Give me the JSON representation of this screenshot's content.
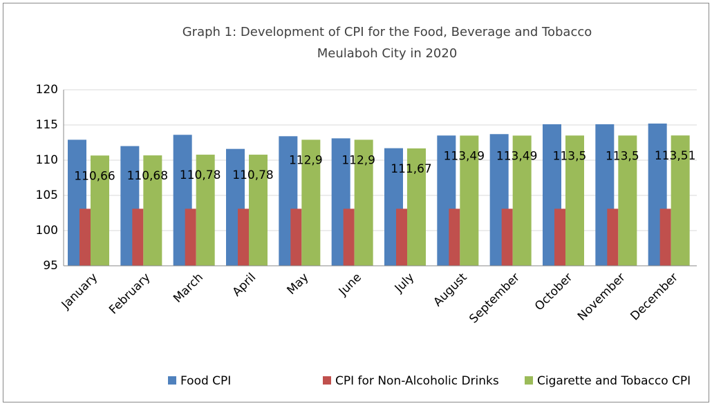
{
  "chart_data": {
    "type": "bar",
    "title": "Graph 1: Development of CPI for the Food, Beverage and Tobacco",
    "subtitle": "Meulaboh City in 2020",
    "categories": [
      "January",
      "February",
      "March",
      "April",
      "May",
      "June",
      "July",
      "August",
      "September",
      "October",
      "November",
      "December"
    ],
    "series": [
      {
        "name": "Food CPI",
        "color": "#4f81bd",
        "values": [
          112.9,
          112.0,
          113.6,
          111.6,
          113.4,
          113.1,
          111.7,
          113.5,
          113.7,
          115.1,
          115.1,
          115.2
        ]
      },
      {
        "name": "CPI for Non-Alcoholic Drinks",
        "color": "#c0504d",
        "values": [
          103.1,
          103.1,
          103.1,
          103.1,
          103.1,
          103.1,
          103.1,
          103.1,
          103.1,
          103.1,
          103.1,
          103.1
        ]
      },
      {
        "name": "Cigarette and Tobacco CPI",
        "color": "#9bbb59",
        "values": [
          110.66,
          110.68,
          110.78,
          110.78,
          112.9,
          112.9,
          111.67,
          113.49,
          113.49,
          113.5,
          113.5,
          113.51
        ],
        "value_labels": [
          "110,66",
          "110,68",
          "110,78",
          "110,78",
          "112,9",
          "112,9",
          "111,67",
          "113,49",
          "113,49",
          "113,5",
          "113,5",
          "113,51"
        ]
      }
    ],
    "ylim": [
      95,
      120
    ],
    "yticks": [
      95,
      100,
      105,
      110,
      115,
      120
    ],
    "grid": true,
    "legend": "bottom"
  }
}
